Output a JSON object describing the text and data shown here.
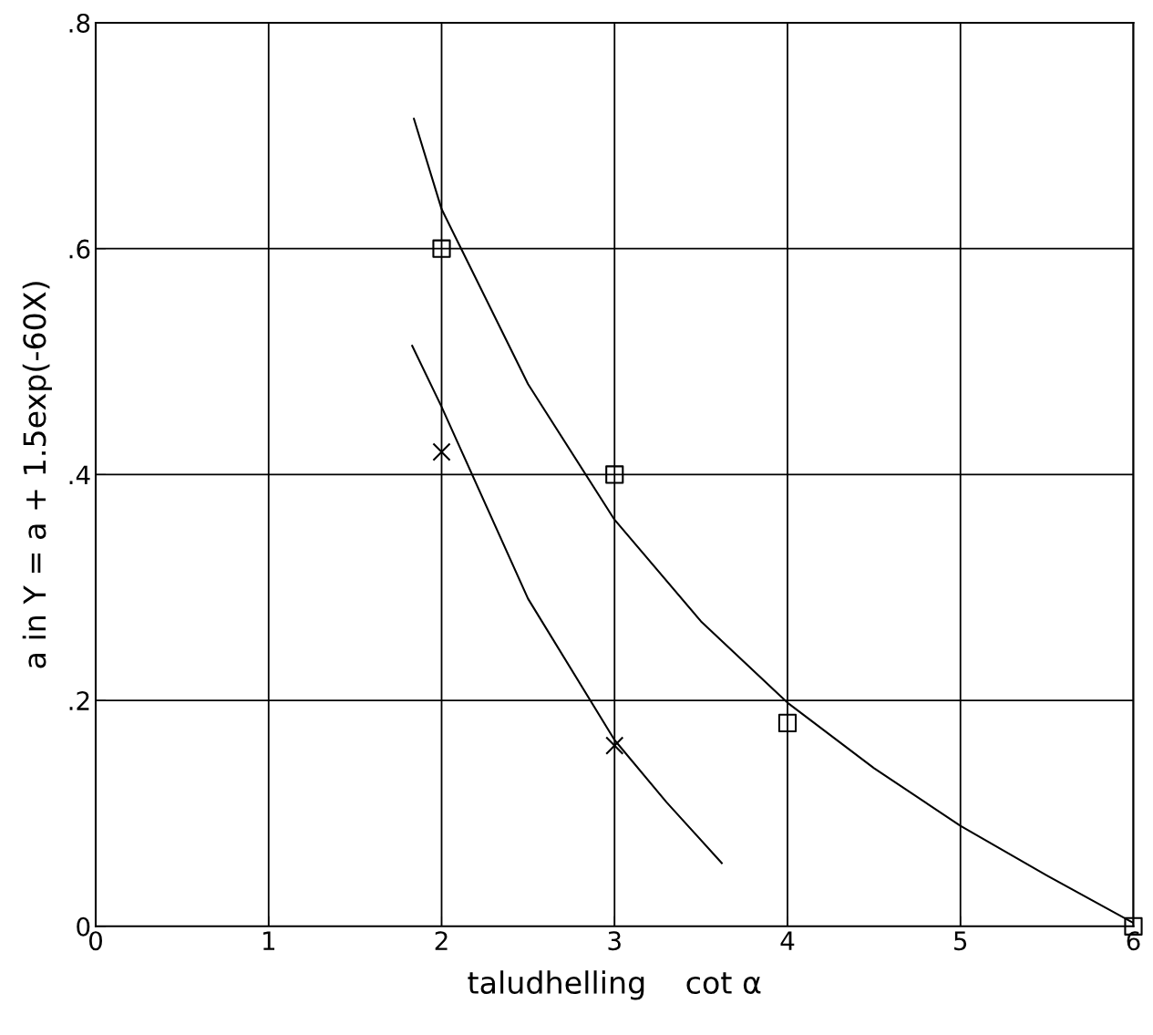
{
  "chart_data": {
    "type": "scatter",
    "xlabel": "taludhelling    cot α",
    "ylabel": "a in Y = a + 1.5exp(-60X)",
    "xlim": [
      0,
      6
    ],
    "ylim": [
      0,
      0.8
    ],
    "xticks": [
      0,
      1,
      2,
      3,
      4,
      5,
      6
    ],
    "yticks": [
      {
        "value": 0,
        "label": "0"
      },
      {
        "value": 0.2,
        "label": ".2"
      },
      {
        "value": 0.4,
        "label": ".4"
      },
      {
        "value": 0.6,
        "label": ".6"
      },
      {
        "value": 0.8,
        "label": ".8"
      }
    ],
    "grid": true,
    "series": [
      {
        "marker": "square",
        "color": "#000000",
        "x": [
          2,
          3,
          4,
          6
        ],
        "values": [
          0.6,
          0.4,
          0.18,
          0.0
        ]
      },
      {
        "marker": "cross",
        "color": "#000000",
        "x": [
          2,
          3
        ],
        "values": [
          0.42,
          0.16
        ]
      },
      {
        "type": "line",
        "marker": "none",
        "color": "#000000",
        "x": [
          1.84,
          2,
          2.5,
          3,
          3.5,
          4,
          4.5,
          5,
          5.5,
          6
        ],
        "values": [
          0.715,
          0.635,
          0.48,
          0.36,
          0.27,
          0.198,
          0.14,
          0.089,
          0.045,
          0.003
        ]
      },
      {
        "type": "line",
        "marker": "none",
        "color": "#000000",
        "x": [
          1.83,
          2,
          2.5,
          3,
          3.3,
          3.62
        ],
        "values": [
          0.514,
          0.46,
          0.29,
          0.165,
          0.11,
          0.056
        ]
      }
    ]
  }
}
